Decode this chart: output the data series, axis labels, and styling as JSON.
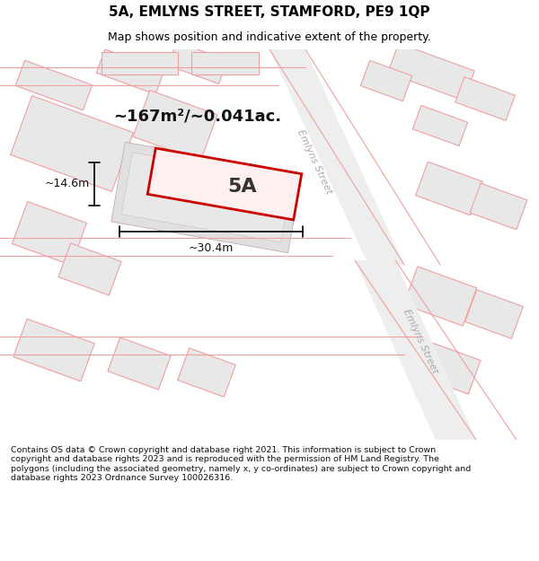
{
  "title": "5A, EMLYNS STREET, STAMFORD, PE9 1QP",
  "subtitle": "Map shows position and indicative extent of the property.",
  "map_bg": "#f5f5f5",
  "header_bg": "#ffffff",
  "footer_text": "Contains OS data © Crown copyright and database right 2021. This information is subject to Crown copyright and database rights 2023 and is reproduced with the permission of HM Land Registry. The polygons (including the associated geometry, namely x, y co-ordinates) are subject to Crown copyright and database rights 2023 Ordnance Survey 100026316.",
  "area_label": "~167m²/~0.041ac.",
  "width_label": "~30.4m",
  "height_label": "~14.6m",
  "plot_label": "5A",
  "building_color": "#e8e8e8",
  "building_edge": "#f0a0a0",
  "road_color": "#f5f5f5",
  "road_line_color": "#f0a0a0",
  "highlight_color": "#cc0000",
  "highlight_fill": "#ffeeee",
  "street_label1": "Emlyns Street",
  "street_label2": "Emlyns Street"
}
